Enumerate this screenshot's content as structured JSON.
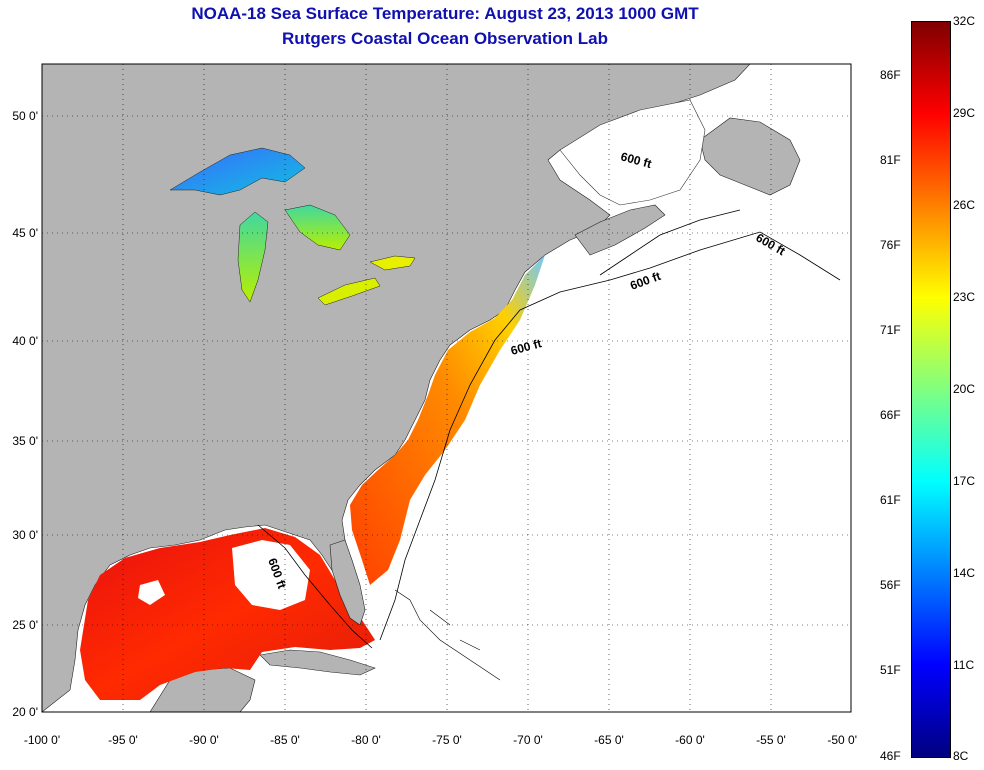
{
  "title": {
    "line1": "NOAA-18 Sea Surface Temperature:  August 23, 2013 1000 GMT",
    "line2": "Rutgers Coastal Ocean Observation Lab"
  },
  "map": {
    "x_ticks": [
      "-100 0'",
      "-95 0'",
      "-90 0'",
      "-85 0'",
      "-80 0'",
      "-75 0'",
      "-70 0'",
      "-65 0'",
      "-60 0'",
      "-55 0'",
      "-50 0'"
    ],
    "y_ticks": [
      "50 0'",
      "45 0'",
      "40 0'",
      "35 0'",
      "30 0'",
      "25 0'",
      "20 0'"
    ],
    "contour_label": "600 ft",
    "land_color": "#b4b4b4",
    "ocean_no_data_color": "#ffffff"
  },
  "colorbar": {
    "fahrenheit_labels": [
      "86F",
      "81F",
      "76F",
      "71F",
      "66F",
      "61F",
      "56F",
      "51F",
      "46F"
    ],
    "celsius_labels": [
      "32C",
      "29C",
      "26C",
      "23C",
      "20C",
      "17C",
      "14C",
      "11C",
      "8C"
    ],
    "colors": [
      "#7f0000",
      "#ff0000",
      "#ff8000",
      "#ffff00",
      "#80ff80",
      "#00ffff",
      "#0080ff",
      "#0000ff",
      "#00007f"
    ]
  }
}
